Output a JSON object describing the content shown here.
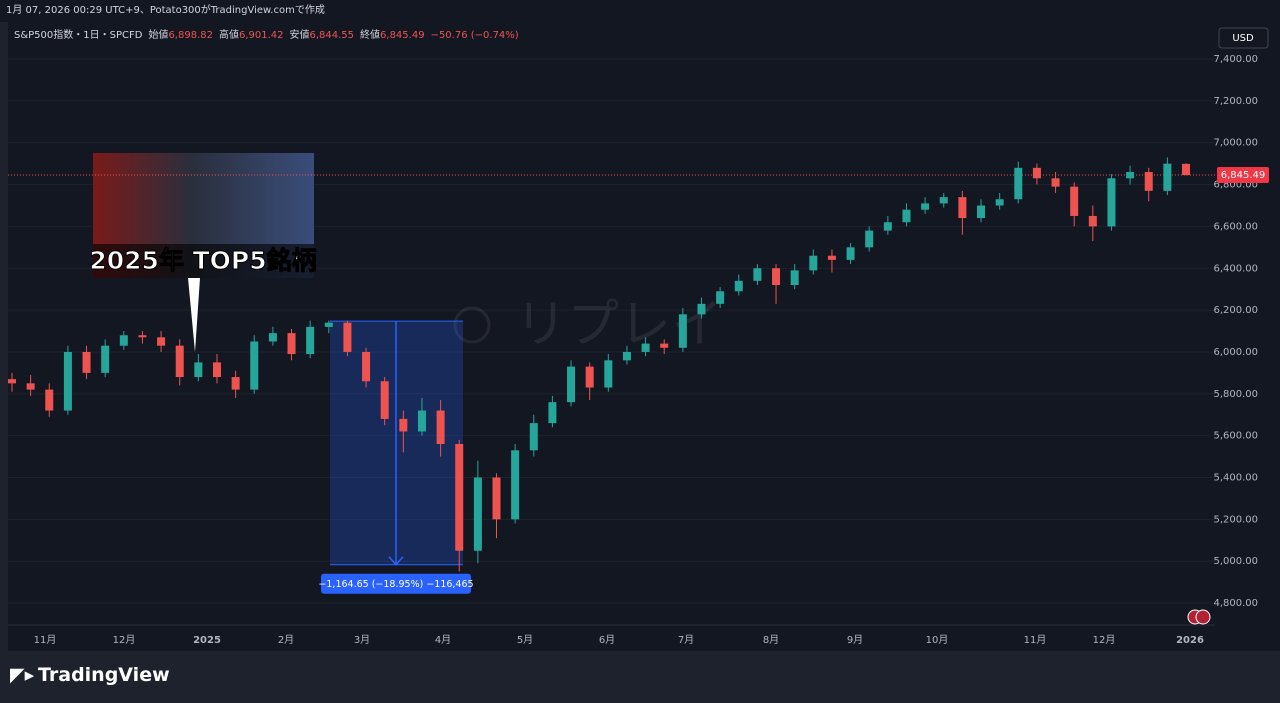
{
  "header": "1月 07, 2026 00:29 UTC+9、Potato300がTradingView.comで作成",
  "logo": "TradingView",
  "currency_button": "USD",
  "watermark": "リプレイ",
  "chart_data": {
    "type": "candlestick",
    "legend": {
      "symbol": "S&P500指数・1日・SPCFD",
      "fields": [
        {
          "name": "始値",
          "value": "6,898.82"
        },
        {
          "name": "高値",
          "value": "6,901.42"
        },
        {
          "name": "安値",
          "value": "6,844.55"
        },
        {
          "name": "終値",
          "value": "6,845.49"
        }
      ],
      "change": "−50.76 (−0.74%)"
    },
    "x_labels": [
      "11月",
      "12月",
      "2025",
      "2月",
      "3月",
      "4月",
      "5月",
      "6月",
      "7月",
      "8月",
      "9月",
      "10月",
      "11月",
      "12月",
      "2026"
    ],
    "up_color": "#26a69a",
    "down_color": "#ef5350",
    "open": [
      5870,
      5850,
      5820,
      5720,
      6000,
      5900,
      6030,
      6080,
      6070,
      6030,
      5880,
      5950,
      5880,
      5820,
      6050,
      6090,
      5990,
      6120,
      6140,
      6000,
      5860,
      5680,
      5620,
      5720,
      5560,
      5050,
      5400,
      5200,
      5530,
      5660,
      5760,
      5930,
      5830,
      5960,
      6000,
      6040,
      6020,
      6180,
      6230,
      6290,
      6340,
      6400,
      6320,
      6390,
      6460,
      6440,
      6500,
      6580,
      6620,
      6680,
      6710,
      6740,
      6640,
      6700,
      6730,
      6880,
      6830,
      6790,
      6650,
      6600,
      6830,
      6860,
      6770,
      6898.82
    ],
    "high": [
      5900,
      5890,
      5850,
      6030,
      6030,
      6060,
      6100,
      6100,
      6100,
      6060,
      5990,
      5990,
      5910,
      6080,
      6120,
      6110,
      6150,
      6150,
      6150,
      6020,
      5880,
      5720,
      5780,
      5770,
      5580,
      5480,
      5420,
      5560,
      5700,
      5790,
      5960,
      5950,
      5990,
      6030,
      6070,
      6060,
      6210,
      6260,
      6310,
      6370,
      6420,
      6420,
      6420,
      6490,
      6490,
      6520,
      6600,
      6650,
      6710,
      6740,
      6760,
      6770,
      6730,
      6760,
      6910,
      6900,
      6860,
      6810,
      6700,
      6850,
      6890,
      6880,
      6930,
      6901.42
    ],
    "low": [
      5810,
      5790,
      5690,
      5700,
      5870,
      5880,
      6010,
      6040,
      6000,
      5840,
      5860,
      5850,
      5780,
      5800,
      6030,
      5960,
      5970,
      6090,
      5980,
      5830,
      5650,
      5520,
      5600,
      5500,
      4950,
      4990,
      5110,
      5180,
      5500,
      5640,
      5740,
      5770,
      5810,
      5940,
      5980,
      5990,
      6000,
      6160,
      6210,
      6270,
      6320,
      6230,
      6300,
      6370,
      6380,
      6420,
      6480,
      6560,
      6600,
      6660,
      6690,
      6560,
      6620,
      6680,
      6710,
      6800,
      6760,
      6600,
      6530,
      6580,
      6800,
      6720,
      6750,
      6844.55
    ],
    "close": [
      5850,
      5820,
      5720,
      6000,
      5900,
      6030,
      6080,
      6070,
      6030,
      5880,
      5950,
      5880,
      5820,
      6050,
      6090,
      5990,
      6120,
      6140,
      6000,
      5860,
      5680,
      5620,
      5720,
      5560,
      5050,
      5400,
      5200,
      5530,
      5660,
      5760,
      5930,
      5830,
      5960,
      6000,
      6040,
      6020,
      6180,
      6230,
      6290,
      6340,
      6400,
      6320,
      6390,
      6460,
      6440,
      6500,
      6580,
      6620,
      6680,
      6710,
      6740,
      6640,
      6700,
      6730,
      6880,
      6830,
      6790,
      6650,
      6600,
      6830,
      6860,
      6770,
      6900,
      6845.49
    ],
    "last_price": {
      "value": 6845.49,
      "label": "6,845.49"
    },
    "measure": {
      "from": 6147.43,
      "to": 4982.78,
      "label": "−1,164.65 (−18.95%) −116,465"
    },
    "annotation": "2025年 TOP5銘柄",
    "ylim": [
      4695,
      7577
    ],
    "yticks": [
      {
        "value": 4800,
        "label": "4,800.00"
      },
      {
        "value": 5000,
        "label": "5,000.00"
      },
      {
        "value": 5200,
        "label": "5,200.00"
      },
      {
        "value": 5400,
        "label": "5,400.00"
      },
      {
        "value": 5600,
        "label": "5,600.00"
      },
      {
        "value": 5800,
        "label": "5,800.00"
      },
      {
        "value": 6000,
        "label": "6,000.00"
      },
      {
        "value": 6200,
        "label": "6,200.00"
      },
      {
        "value": 6400,
        "label": "6,400.00"
      },
      {
        "value": 6600,
        "label": "6,600.00"
      },
      {
        "value": 6800,
        "label": "6,800.00"
      },
      {
        "value": 7000,
        "label": "7,000.00"
      },
      {
        "value": 7200,
        "label": "7,200.00"
      },
      {
        "value": 7400,
        "label": "7,400.00"
      }
    ]
  }
}
